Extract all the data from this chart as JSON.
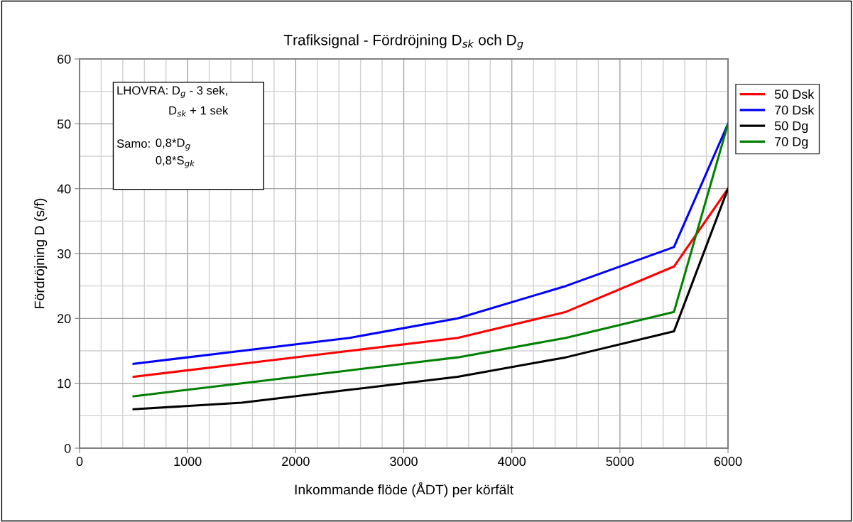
{
  "chart_data": {
    "type": "line",
    "title": "Trafiksignal - Fördröjning D$_{sk}$ och D$_{g}$",
    "xlabel": "Inkommande flöde (ÅDT) per körfält",
    "ylabel": "Fördröjning D (s/f)",
    "x": [
      500,
      1500,
      2500,
      3500,
      4500,
      5500,
      6000
    ],
    "series": [
      {
        "name": "50 Dsk",
        "color": "#ff0000",
        "values": [
          11,
          13,
          15,
          17,
          21,
          28,
          40
        ]
      },
      {
        "name": "70 Dsk",
        "color": "#0000ff",
        "values": [
          13,
          15,
          17,
          20,
          25,
          31,
          50
        ]
      },
      {
        "name": "50 Dg",
        "color": "#000000",
        "values": [
          6,
          7,
          9,
          11,
          14,
          18,
          40
        ]
      },
      {
        "name": "70 Dg",
        "color": "#008000",
        "values": [
          8,
          10,
          12,
          14,
          17,
          21,
          50
        ]
      }
    ],
    "xlim": [
      0,
      6000
    ],
    "xticks": [
      0,
      1000,
      2000,
      3000,
      4000,
      5000,
      6000
    ],
    "ylim": [
      0,
      60
    ],
    "yticks": [
      0,
      10,
      20,
      30,
      40,
      50,
      60
    ],
    "grid": true,
    "legend": "top right",
    "marker": "none",
    "line_style": "solid",
    "annotations": [
      "LHOVRA: D$_{g}$ - 3 sek,",
      "D$_{sk}$ + 1 sek",
      "Samo:",
      "0,8*D$_{g}$",
      "0,8*S$_{gk}$"
    ]
  }
}
